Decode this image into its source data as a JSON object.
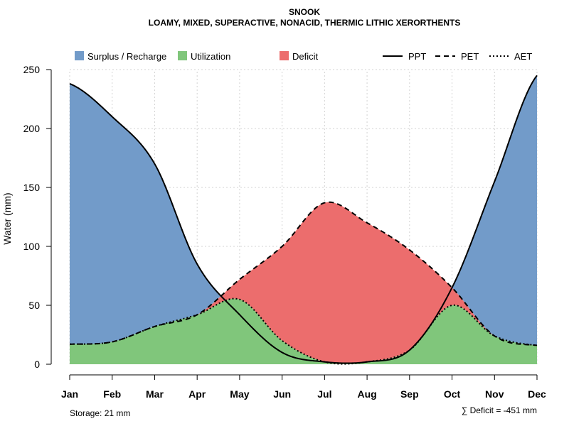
{
  "chart_data": {
    "type": "area",
    "title": "SNOOK",
    "subtitle": "LOAMY, MIXED, SUPERACTIVE, NONACID, THERMIC LITHIC XERORTHENTS",
    "ylabel": "Water (mm)",
    "xlabel": "",
    "ylim": [
      0,
      250
    ],
    "yticks": [
      0,
      50,
      100,
      150,
      200,
      250
    ],
    "categories": [
      "Jan",
      "Feb",
      "Mar",
      "Apr",
      "May",
      "Jun",
      "Jul",
      "Aug",
      "Sep",
      "Oct",
      "Nov",
      "Dec"
    ],
    "grid": true,
    "series": [
      {
        "name": "PPT",
        "style": "solid",
        "values": [
          238,
          210,
          170,
          85,
          42,
          10,
          2,
          2,
          12,
          65,
          155,
          245
        ]
      },
      {
        "name": "PET",
        "style": "dashed",
        "values": [
          17,
          19,
          32,
          42,
          72,
          100,
          137,
          120,
          97,
          65,
          24,
          16
        ]
      },
      {
        "name": "AET",
        "style": "dotted",
        "values": [
          17,
          19,
          32,
          42,
          55,
          20,
          2,
          2,
          12,
          50,
          24,
          16
        ]
      }
    ],
    "legend": {
      "position": "top",
      "fills": [
        {
          "label": "Surplus / Recharge",
          "color": "#729bc9"
        },
        {
          "label": "Utilization",
          "color": "#80c67b"
        },
        {
          "label": "Deficit",
          "color": "#ec6d6d"
        }
      ],
      "lines": [
        {
          "label": "PPT",
          "style": "solid"
        },
        {
          "label": "PET",
          "style": "dashed"
        },
        {
          "label": "AET",
          "style": "dotted"
        }
      ]
    },
    "annotations": {
      "storage": "Storage: 21 mm",
      "deficit": "∑ Deficit = -451 mm"
    },
    "colors": {
      "surplus": "#729bc9",
      "utilization": "#80c67b",
      "deficit": "#ec6d6d",
      "grid": "#d3d3d3",
      "line": "#000000"
    }
  }
}
